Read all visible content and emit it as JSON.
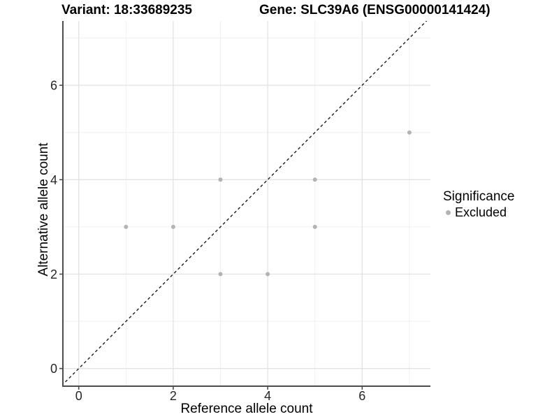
{
  "header": {
    "title_left": "Variant: 18:33689235",
    "title_right": "Gene: SLC39A6 (ENSG00000141424)"
  },
  "chart_data": {
    "type": "scatter",
    "title_left": "Variant: 18:33689235",
    "title_right": "Gene: SLC39A6 (ENSG00000141424)",
    "xlabel": "Reference allele count",
    "ylabel": "Alternative allele count",
    "xlim": [
      -0.35,
      7.4
    ],
    "ylim": [
      -0.35,
      7.35
    ],
    "x_ticks": [
      0,
      2,
      4,
      6
    ],
    "y_ticks": [
      0,
      2,
      4,
      6
    ],
    "gridlines": {
      "major": [
        0,
        2,
        4,
        6
      ],
      "minor": [
        1,
        3,
        5,
        7
      ],
      "visible": true
    },
    "series": [
      {
        "name": "Excluded",
        "color": "#b3b3b3",
        "points": [
          [
            1,
            3
          ],
          [
            2,
            3
          ],
          [
            3,
            2
          ],
          [
            3,
            4
          ],
          [
            4,
            2
          ],
          [
            5,
            3
          ],
          [
            5,
            4
          ],
          [
            7,
            5
          ]
        ]
      }
    ],
    "reference_line": {
      "type": "identity",
      "slope": 1,
      "intercept": 0,
      "style": "dashed",
      "color": "#1a1a1a"
    },
    "legend": {
      "position": "right",
      "title": "Significance",
      "items": [
        {
          "label": "Excluded",
          "color": "#b3b3b3"
        }
      ]
    }
  },
  "colors": {
    "point": "#b3b3b3",
    "axis_line": "#4d4d4d",
    "tick_label": "#262626",
    "grid_major": "#e3e3e3",
    "grid_minor": "#f1f1f1",
    "background": "#ffffff"
  }
}
